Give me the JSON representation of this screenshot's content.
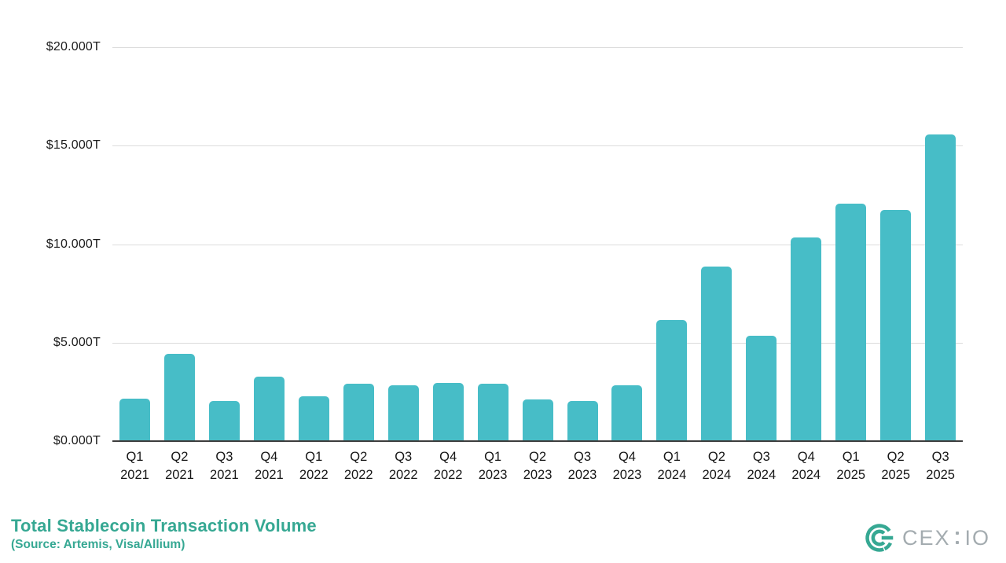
{
  "chart_data": {
    "type": "bar",
    "title": "Total Stablecoin Transaction Volume",
    "subtitle": "(Source: Artemis, Visa/Allium)",
    "categories": [
      {
        "quarter": "Q1",
        "year": "2021"
      },
      {
        "quarter": "Q2",
        "year": "2021"
      },
      {
        "quarter": "Q3",
        "year": "2021"
      },
      {
        "quarter": "Q4",
        "year": "2021"
      },
      {
        "quarter": "Q1",
        "year": "2022"
      },
      {
        "quarter": "Q2",
        "year": "2022"
      },
      {
        "quarter": "Q3",
        "year": "2022"
      },
      {
        "quarter": "Q4",
        "year": "2022"
      },
      {
        "quarter": "Q1",
        "year": "2023"
      },
      {
        "quarter": "Q2",
        "year": "2023"
      },
      {
        "quarter": "Q3",
        "year": "2023"
      },
      {
        "quarter": "Q4",
        "year": "2023"
      },
      {
        "quarter": "Q1",
        "year": "2024"
      },
      {
        "quarter": "Q2",
        "year": "2024"
      },
      {
        "quarter": "Q3",
        "year": "2024"
      },
      {
        "quarter": "Q4",
        "year": "2024"
      },
      {
        "quarter": "Q1",
        "year": "2025"
      },
      {
        "quarter": "Q2",
        "year": "2025"
      },
      {
        "quarter": "Q3",
        "year": "2025"
      }
    ],
    "values": [
      2.15,
      4.42,
      2.03,
      3.28,
      2.28,
      2.92,
      2.85,
      2.95,
      2.9,
      2.1,
      2.02,
      2.85,
      6.14,
      8.86,
      5.34,
      10.34,
      12.06,
      11.75,
      15.58
    ],
    "y_ticks": [
      "$20.000T",
      "$15.000T",
      "$10.000T",
      "$5.000T",
      "$0.000T"
    ],
    "ylim": [
      0,
      20
    ],
    "grid": true,
    "legend": "none",
    "xlabel": "",
    "ylabel": ""
  },
  "footer": {
    "title": "Total Stablecoin Transaction Volume",
    "subtitle": "(Source: Artemis, Visa/Allium)"
  },
  "brand": {
    "logo_text_left": "CEX",
    "logo_text_right": "IO"
  },
  "colors": {
    "bar": "#47bdc7",
    "accent_teal": "#36a893",
    "gridline": "#dcdcdc",
    "baseline": "#3d3d3d",
    "tick_text": "#1c1c1c",
    "logo_gray": "#a4acb0"
  }
}
